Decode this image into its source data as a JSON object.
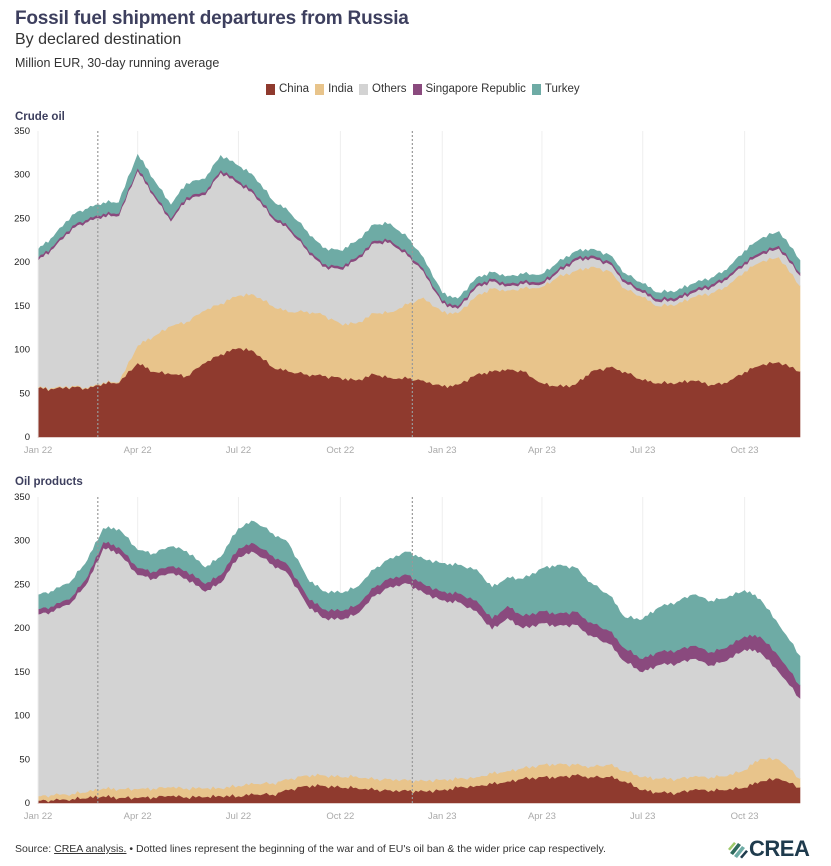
{
  "header": {
    "title": "Fossil fuel shipment departures from Russia",
    "subtitle": "By declared destination",
    "unit": "Million EUR, 30-day running average"
  },
  "legend": [
    {
      "name": "China",
      "color": "#8f3a2e"
    },
    {
      "name": "India",
      "color": "#e8c48b"
    },
    {
      "name": "Others",
      "color": "#d3d3d3"
    },
    {
      "name": "Singapore Republic",
      "color": "#8a4a7e"
    },
    {
      "name": "Turkey",
      "color": "#6eaba5"
    }
  ],
  "footer": {
    "source_prefix": "Source: ",
    "source_link": "CREA analysis.",
    "note": " • Dotted lines represent the beginning of the war and of EU's oil ban & the wider price cap respectively.",
    "logo_text": "CREA"
  },
  "chart_data": [
    {
      "type": "area",
      "stacked": true,
      "title": "Crude oil",
      "xlabel": "",
      "ylabel": "Million EUR, 30-day running average",
      "ylim": [
        0,
        350
      ],
      "yticks": [
        0,
        50,
        100,
        150,
        200,
        250,
        300,
        350
      ],
      "xticks": [
        "Jan 22",
        "Apr 22",
        "Jul 22",
        "Oct 22",
        "Jan 23",
        "Apr 23",
        "Jul 23",
        "Oct 23"
      ],
      "x_range": [
        "2022-01-01",
        "2023-11-20"
      ],
      "grid": "vertical",
      "legend": "top-center",
      "annotations": [
        {
          "type": "dotted-vline",
          "x": "2022-02-24",
          "label": "Beginning of the war"
        },
        {
          "type": "dotted-vline",
          "x": "2022-12-05",
          "label": "EU oil ban & price cap"
        }
      ],
      "x": [
        "2022-01-01",
        "2022-01-15",
        "2022-02-01",
        "2022-02-15",
        "2022-03-01",
        "2022-03-15",
        "2022-04-01",
        "2022-04-15",
        "2022-05-01",
        "2022-05-15",
        "2022-06-01",
        "2022-06-15",
        "2022-07-01",
        "2022-07-15",
        "2022-08-01",
        "2022-08-15",
        "2022-09-01",
        "2022-09-15",
        "2022-10-01",
        "2022-10-15",
        "2022-11-01",
        "2022-11-15",
        "2022-12-01",
        "2022-12-15",
        "2023-01-01",
        "2023-01-15",
        "2023-02-01",
        "2023-02-15",
        "2023-03-01",
        "2023-03-15",
        "2023-04-01",
        "2023-04-15",
        "2023-05-01",
        "2023-05-15",
        "2023-06-01",
        "2023-06-15",
        "2023-07-01",
        "2023-07-15",
        "2023-08-01",
        "2023-08-15",
        "2023-09-01",
        "2023-09-15",
        "2023-10-01",
        "2023-10-15",
        "2023-11-01",
        "2023-11-20"
      ],
      "series": [
        {
          "name": "China",
          "values": [
            56,
            55,
            58,
            55,
            62,
            62,
            85,
            75,
            72,
            70,
            85,
            95,
            102,
            98,
            80,
            75,
            72,
            70,
            68,
            65,
            72,
            68,
            67,
            65,
            58,
            60,
            72,
            75,
            78,
            75,
            62,
            58,
            60,
            75,
            80,
            75,
            65,
            62,
            62,
            65,
            60,
            62,
            75,
            82,
            86,
            75
          ]
        },
        {
          "name": "India",
          "values": [
            1,
            1,
            1,
            1,
            1,
            1,
            20,
            40,
            55,
            62,
            60,
            58,
            60,
            65,
            70,
            68,
            72,
            70,
            62,
            65,
            70,
            75,
            85,
            95,
            85,
            82,
            90,
            95,
            90,
            95,
            110,
            125,
            130,
            120,
            110,
            95,
            95,
            88,
            90,
            95,
            105,
            110,
            115,
            118,
            120,
            98
          ]
        },
        {
          "name": "Others",
          "values": [
            145,
            160,
            180,
            190,
            190,
            190,
            200,
            162,
            120,
            140,
            132,
            150,
            128,
            115,
            100,
            95,
            70,
            55,
            62,
            72,
            80,
            80,
            55,
            30,
            10,
            5,
            10,
            8,
            5,
            5,
            3,
            5,
            12,
            10,
            8,
            7,
            5,
            5,
            5,
            5,
            7,
            8,
            8,
            8,
            10,
            12
          ]
        },
        {
          "name": "Singapore Republic",
          "values": [
            3,
            3,
            3,
            3,
            3,
            3,
            3,
            3,
            3,
            3,
            3,
            3,
            3,
            3,
            3,
            3,
            3,
            3,
            3,
            3,
            3,
            3,
            3,
            3,
            3,
            3,
            3,
            3,
            3,
            3,
            3,
            3,
            3,
            3,
            3,
            3,
            3,
            3,
            3,
            3,
            3,
            3,
            3,
            3,
            3,
            3
          ]
        },
        {
          "name": "Turkey",
          "values": [
            9,
            10,
            12,
            12,
            12,
            12,
            15,
            15,
            15,
            15,
            15,
            16,
            17,
            17,
            17,
            17,
            18,
            18,
            18,
            18,
            18,
            18,
            17,
            12,
            8,
            8,
            7,
            7,
            8,
            8,
            8,
            8,
            7,
            7,
            7,
            7,
            7,
            7,
            7,
            7,
            7,
            8,
            12,
            15,
            16,
            14
          ]
        }
      ]
    },
    {
      "type": "area",
      "stacked": true,
      "title": "Oil products",
      "xlabel": "",
      "ylabel": "Million EUR, 30-day running average",
      "ylim": [
        0,
        350
      ],
      "yticks": [
        0,
        50,
        100,
        150,
        200,
        250,
        300,
        350
      ],
      "xticks": [
        "Jan 22",
        "Apr 22",
        "Jul 22",
        "Oct 22",
        "Jan 23",
        "Apr 23",
        "Jul 23",
        "Oct 23"
      ],
      "x_range": [
        "2022-01-01",
        "2023-11-20"
      ],
      "grid": "vertical",
      "legend": "top-center",
      "annotations": [
        {
          "type": "dotted-vline",
          "x": "2022-02-24",
          "label": "Beginning of the war"
        },
        {
          "type": "dotted-vline",
          "x": "2022-12-05",
          "label": "EU oil ban & price cap"
        }
      ],
      "x": [
        "2022-01-01",
        "2022-01-15",
        "2022-02-01",
        "2022-02-15",
        "2022-03-01",
        "2022-03-15",
        "2022-04-01",
        "2022-04-15",
        "2022-05-01",
        "2022-05-15",
        "2022-06-01",
        "2022-06-15",
        "2022-07-01",
        "2022-07-15",
        "2022-08-01",
        "2022-08-15",
        "2022-09-01",
        "2022-09-15",
        "2022-10-01",
        "2022-10-15",
        "2022-11-01",
        "2022-11-15",
        "2022-12-01",
        "2022-12-15",
        "2023-01-01",
        "2023-01-15",
        "2023-02-01",
        "2023-02-15",
        "2023-03-01",
        "2023-03-15",
        "2023-04-01",
        "2023-04-15",
        "2023-05-01",
        "2023-05-15",
        "2023-06-01",
        "2023-06-15",
        "2023-07-01",
        "2023-07-15",
        "2023-08-01",
        "2023-08-15",
        "2023-09-01",
        "2023-09-15",
        "2023-10-01",
        "2023-10-15",
        "2023-11-01",
        "2023-11-20"
      ],
      "series": [
        {
          "name": "China",
          "values": [
            3,
            3,
            5,
            6,
            8,
            6,
            6,
            7,
            8,
            7,
            7,
            8,
            8,
            10,
            10,
            15,
            20,
            20,
            18,
            18,
            15,
            15,
            14,
            14,
            15,
            18,
            20,
            22,
            25,
            28,
            30,
            30,
            32,
            30,
            30,
            25,
            15,
            12,
            12,
            15,
            15,
            15,
            18,
            25,
            28,
            18
          ]
        },
        {
          "name": "India",
          "values": [
            5,
            6,
            6,
            7,
            9,
            10,
            10,
            10,
            10,
            10,
            10,
            9,
            12,
            12,
            13,
            12,
            12,
            12,
            12,
            13,
            12,
            13,
            12,
            12,
            12,
            10,
            10,
            12,
            12,
            12,
            14,
            15,
            12,
            12,
            14,
            12,
            15,
            16,
            16,
            15,
            15,
            16,
            20,
            26,
            22,
            10
          ]
        },
        {
          "name": "Others",
          "values": [
            208,
            210,
            220,
            240,
            275,
            270,
            245,
            240,
            245,
            240,
            225,
            235,
            262,
            265,
            250,
            235,
            195,
            180,
            180,
            185,
            210,
            220,
            225,
            215,
            205,
            202,
            190,
            165,
            175,
            160,
            162,
            158,
            160,
            150,
            138,
            125,
            120,
            130,
            132,
            135,
            128,
            132,
            138,
            122,
            100,
            92
          ]
        },
        {
          "name": "Singapore Republic",
          "values": [
            6,
            6,
            6,
            7,
            7,
            7,
            8,
            8,
            8,
            9,
            9,
            9,
            10,
            10,
            10,
            10,
            10,
            10,
            10,
            10,
            10,
            10,
            10,
            10,
            10,
            10,
            12,
            12,
            14,
            14,
            14,
            14,
            15,
            15,
            15,
            15,
            15,
            15,
            15,
            15,
            15,
            15,
            15,
            18,
            18,
            15
          ]
        },
        {
          "name": "Turkey",
          "values": [
            16,
            17,
            18,
            18,
            15,
            20,
            20,
            20,
            22,
            22,
            18,
            20,
            22,
            25,
            25,
            25,
            20,
            20,
            20,
            20,
            20,
            22,
            26,
            28,
            32,
            32,
            35,
            35,
            32,
            42,
            48,
            55,
            50,
            45,
            40,
            35,
            45,
            50,
            55,
            58,
            58,
            56,
            52,
            42,
            35,
            33
          ]
        }
      ]
    }
  ]
}
